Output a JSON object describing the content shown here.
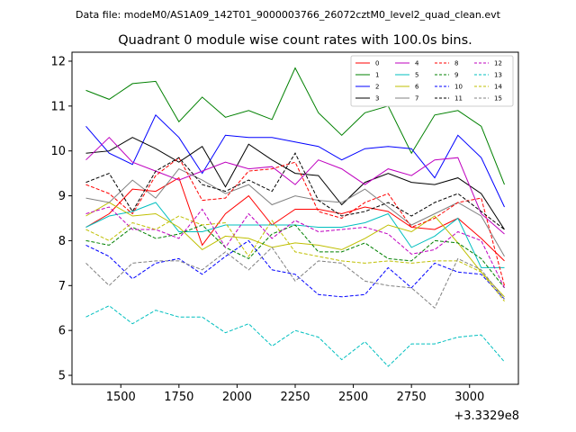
{
  "header": {
    "datafile": "Data file: modeM0/AS1A09_142T01_9000003766_26072cztM0_level2_quad_clean.evt"
  },
  "chart_data": {
    "type": "line",
    "title": "Quadrant 0 module wise count rates with 100.0s bins.",
    "xlabel": "",
    "ylabel": "",
    "x_offset_label": "+3.3329e8",
    "xlim": [
      1290,
      3210
    ],
    "ylim": [
      4.8,
      12.2
    ],
    "x_ticks": [
      1500,
      1750,
      2000,
      2250,
      2500,
      2750,
      3000
    ],
    "x_tick_labels": [
      "1500",
      "1750",
      "2000",
      "2250",
      "2500",
      "2750",
      "3000"
    ],
    "y_ticks": [
      5,
      6,
      7,
      8,
      9,
      10,
      11,
      12
    ],
    "y_tick_labels": [
      "5",
      "6",
      "7",
      "8",
      "9",
      "10",
      "11",
      "12"
    ],
    "grid": false,
    "legend_position": "top-right",
    "x": [
      1350,
      1450,
      1550,
      1650,
      1750,
      1850,
      1950,
      2050,
      2150,
      2250,
      2350,
      2450,
      2550,
      2650,
      2750,
      2850,
      2950,
      3050,
      3150
    ],
    "series": [
      {
        "name": "0",
        "color": "#ff0000",
        "dash": "solid",
        "values": [
          8.3,
          8.6,
          9.15,
          9.1,
          9.4,
          7.9,
          8.6,
          9.0,
          8.35,
          8.7,
          8.7,
          8.6,
          8.75,
          8.65,
          8.3,
          8.25,
          8.5,
          8.05,
          7.55
        ]
      },
      {
        "name": "1",
        "color": "#008000",
        "dash": "solid",
        "values": [
          11.35,
          11.15,
          11.5,
          11.55,
          10.65,
          11.2,
          10.75,
          10.9,
          10.7,
          11.85,
          10.85,
          10.35,
          10.85,
          11.0,
          9.95,
          10.8,
          10.9,
          10.55,
          9.25
        ]
      },
      {
        "name": "2",
        "color": "#0000ff",
        "dash": "solid",
        "values": [
          10.55,
          9.95,
          9.7,
          10.8,
          10.3,
          9.5,
          10.35,
          10.3,
          10.3,
          10.2,
          10.1,
          9.8,
          10.05,
          10.1,
          10.05,
          9.4,
          10.35,
          9.85,
          8.75
        ]
      },
      {
        "name": "3",
        "color": "#000000",
        "dash": "solid",
        "values": [
          9.95,
          10.0,
          10.3,
          10.05,
          9.75,
          10.1,
          9.2,
          10.15,
          9.8,
          9.5,
          9.45,
          8.8,
          9.3,
          9.5,
          9.3,
          9.25,
          9.4,
          9.05,
          8.25
        ]
      },
      {
        "name": "4",
        "color": "#bf00bf",
        "dash": "solid",
        "values": [
          9.8,
          10.3,
          9.75,
          9.55,
          9.35,
          9.55,
          9.75,
          9.6,
          9.65,
          9.25,
          9.8,
          9.6,
          9.25,
          9.6,
          9.45,
          9.8,
          9.85,
          8.6,
          8.15
        ]
      },
      {
        "name": "5",
        "color": "#00bfbf",
        "dash": "solid",
        "values": [
          8.3,
          8.55,
          8.65,
          8.85,
          8.2,
          8.2,
          8.35,
          8.35,
          8.35,
          8.35,
          8.3,
          8.3,
          8.4,
          8.6,
          7.85,
          8.1,
          8.5,
          7.4,
          7.4
        ]
      },
      {
        "name": "6",
        "color": "#bfbf00",
        "dash": "solid",
        "values": [
          8.55,
          8.85,
          8.55,
          8.6,
          8.3,
          7.8,
          8.1,
          8.05,
          7.85,
          7.95,
          7.9,
          7.8,
          8.05,
          8.35,
          8.2,
          8.55,
          7.95,
          7.3,
          6.75
        ]
      },
      {
        "name": "7",
        "color": "#808080",
        "dash": "solid",
        "values": [
          8.95,
          8.85,
          9.35,
          8.95,
          9.6,
          9.35,
          9.05,
          9.25,
          8.8,
          9.0,
          8.9,
          8.85,
          9.15,
          8.75,
          8.35,
          8.6,
          8.85,
          8.55,
          7.65
        ]
      },
      {
        "name": "8",
        "color": "#ff0000",
        "dash": "dashed",
        "values": [
          9.25,
          9.05,
          8.6,
          9.45,
          9.85,
          8.9,
          8.95,
          9.55,
          9.6,
          9.75,
          8.65,
          8.5,
          8.85,
          9.05,
          8.3,
          8.5,
          8.85,
          8.95,
          7.0
        ]
      },
      {
        "name": "9",
        "color": "#008000",
        "dash": "dashed",
        "values": [
          8.0,
          7.9,
          8.3,
          8.05,
          8.15,
          8.35,
          7.85,
          7.6,
          8.15,
          8.35,
          7.75,
          7.75,
          7.95,
          7.6,
          7.55,
          8.0,
          7.95,
          7.6,
          6.95
        ]
      },
      {
        "name": "10",
        "color": "#0000ff",
        "dash": "dashed",
        "values": [
          7.9,
          7.65,
          7.15,
          7.5,
          7.6,
          7.25,
          7.65,
          8.0,
          7.35,
          7.25,
          6.8,
          6.75,
          6.8,
          7.4,
          6.95,
          7.5,
          7.3,
          7.25,
          6.7
        ]
      },
      {
        "name": "11",
        "color": "#000000",
        "dash": "dashed",
        "values": [
          9.3,
          9.5,
          8.65,
          9.55,
          9.85,
          9.25,
          9.1,
          9.35,
          9.1,
          9.95,
          8.9,
          8.55,
          8.65,
          8.85,
          8.55,
          8.85,
          9.05,
          8.65,
          8.25
        ]
      },
      {
        "name": "12",
        "color": "#bf00bf",
        "dash": "dashed",
        "values": [
          8.6,
          8.75,
          8.25,
          8.25,
          8.05,
          8.7,
          7.85,
          8.6,
          8.05,
          8.45,
          8.2,
          8.25,
          8.3,
          8.15,
          7.7,
          7.8,
          8.2,
          8.0,
          6.95
        ]
      },
      {
        "name": "13",
        "color": "#00bfbf",
        "dash": "dashed",
        "values": [
          6.3,
          6.55,
          6.15,
          6.45,
          6.3,
          6.3,
          5.95,
          6.15,
          5.65,
          6.0,
          5.85,
          5.35,
          5.75,
          5.2,
          5.7,
          5.7,
          5.85,
          5.9,
          5.3
        ]
      },
      {
        "name": "14",
        "color": "#bfbf00",
        "dash": "dashed",
        "values": [
          8.25,
          8.0,
          8.4,
          8.25,
          8.55,
          8.35,
          8.4,
          7.65,
          8.45,
          7.75,
          7.65,
          7.55,
          7.5,
          7.55,
          7.5,
          7.55,
          7.55,
          7.3,
          6.65
        ]
      },
      {
        "name": "15",
        "color": "#808080",
        "dash": "dashed",
        "values": [
          7.5,
          7.0,
          7.5,
          7.55,
          7.55,
          7.35,
          7.75,
          7.35,
          7.85,
          7.1,
          7.55,
          7.5,
          7.1,
          7.0,
          6.95,
          6.5,
          7.6,
          7.35,
          6.7
        ]
      }
    ]
  }
}
